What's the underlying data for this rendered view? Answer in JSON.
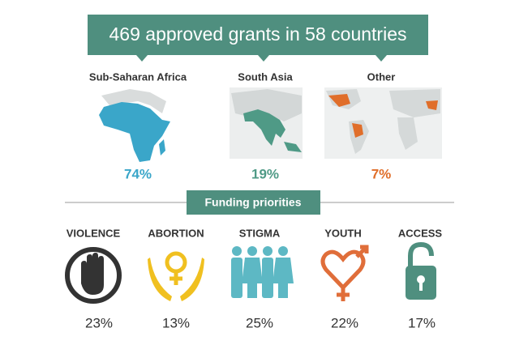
{
  "header": {
    "title": "469 approved grants in 58 countries"
  },
  "regions": [
    {
      "label": "Sub-Saharan Africa",
      "share": "74%"
    },
    {
      "label": "South Asia",
      "share": "19%"
    },
    {
      "label": "Other",
      "share": "7%"
    }
  ],
  "priorities": {
    "title": "Funding priorities",
    "items": [
      {
        "label": "VIOLENCE",
        "share": "23%"
      },
      {
        "label": "ABORTION",
        "share": "13%"
      },
      {
        "label": "STIGMA",
        "share": "25%"
      },
      {
        "label": "YOUTH",
        "share": "22%"
      },
      {
        "label": "ACCESS",
        "share": "17%"
      }
    ]
  }
}
